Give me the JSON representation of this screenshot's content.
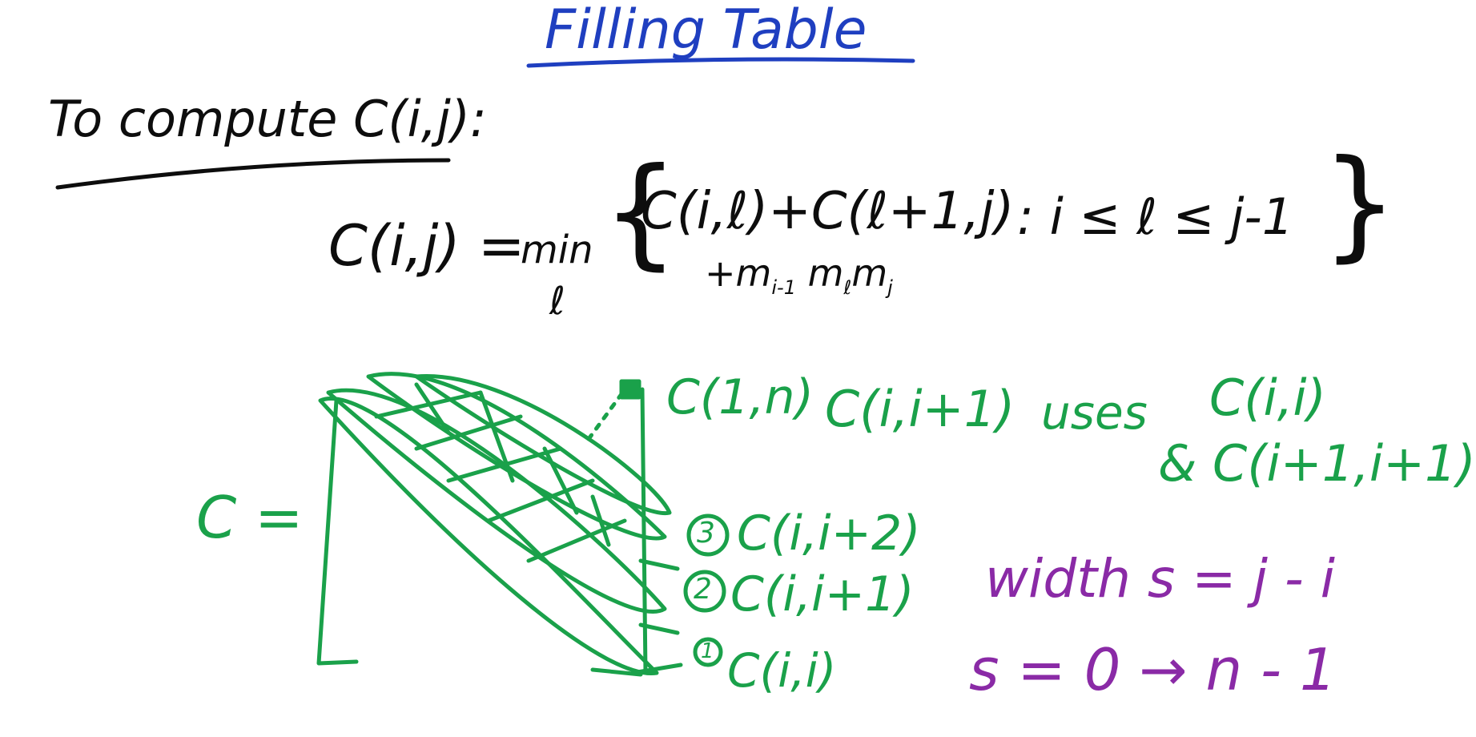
{
  "title": "Filling Table",
  "heading": "To compute C(i,j):",
  "recurrence": {
    "lhs": "C(i,j) =",
    "min_op": "min",
    "min_index": "ℓ",
    "brace_open": "{",
    "term1": "C(i,ℓ)+C(ℓ+1,j)",
    "term2": "+m",
    "term2_sub": "i-1",
    "term2_b": "m",
    "term2_b_sub": "ℓ",
    "term2_c": "m",
    "term2_c_sub": "j",
    "constraint": ":  i ≤ ℓ ≤ j-1",
    "brace_close": "}"
  },
  "table": {
    "label": "C ="
  },
  "diagonal_labels": {
    "top": "C(1,n)",
    "d3_number": "3",
    "d3_text": "C(i,i+2)",
    "d2_number": "2",
    "d2_text": "C(i,i+1)",
    "d1_number": "1",
    "d1_text": "C(i,i)"
  },
  "dependency_note": {
    "lhs": "C(i,i+1)",
    "uses": "uses",
    "rhs1": "C(i,i)",
    "rhs2": "& C(i+1,i+1)"
  },
  "width_note": {
    "line1": "width s = j - i",
    "line2": "s = 0 → n - 1"
  },
  "colors": {
    "title": "#1f3fc0",
    "math": "#0d0d0d",
    "table": "#1aa14a",
    "width": "#8a2aa6"
  }
}
